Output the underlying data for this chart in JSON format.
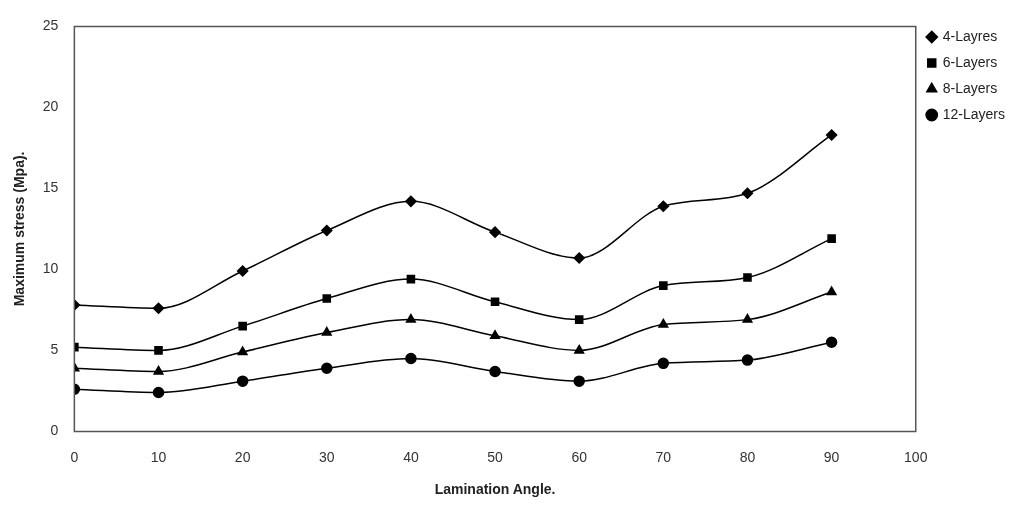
{
  "chart_data": {
    "type": "line",
    "xlabel": "Lamination Angle.",
    "ylabel": "Maximum stress (Mpa).",
    "x": [
      0,
      10,
      20,
      30,
      40,
      50,
      60,
      70,
      80,
      90
    ],
    "xlim": [
      0,
      100
    ],
    "xticks": [
      0,
      10,
      20,
      30,
      40,
      50,
      60,
      70,
      80,
      90,
      100
    ],
    "ylim": [
      0,
      25
    ],
    "yticks": [
      0,
      5,
      10,
      15,
      20,
      25
    ],
    "grid": false,
    "legend": "top right",
    "series": [
      {
        "name": "4-Layres",
        "color": "#000000",
        "marker": "diamond",
        "values": [
          7.8,
          7.6,
          9.9,
          12.4,
          14.2,
          12.3,
          10.7,
          13.9,
          14.7,
          18.3
        ]
      },
      {
        "name": "6-Layers",
        "color": "#000000",
        "marker": "square",
        "values": [
          5.2,
          5.0,
          6.5,
          8.2,
          9.4,
          8.0,
          6.9,
          9.0,
          9.5,
          11.9
        ]
      },
      {
        "name": "8-Layers",
        "color": "#000000",
        "marker": "triangle",
        "values": [
          3.9,
          3.7,
          4.9,
          6.1,
          6.9,
          5.9,
          5.0,
          6.6,
          6.9,
          8.6
        ]
      },
      {
        "name": "12-Layers",
        "color": "#000000",
        "marker": "circle",
        "values": [
          2.6,
          2.4,
          3.1,
          3.9,
          4.5,
          3.7,
          3.1,
          4.2,
          4.4,
          5.5
        ]
      }
    ]
  }
}
